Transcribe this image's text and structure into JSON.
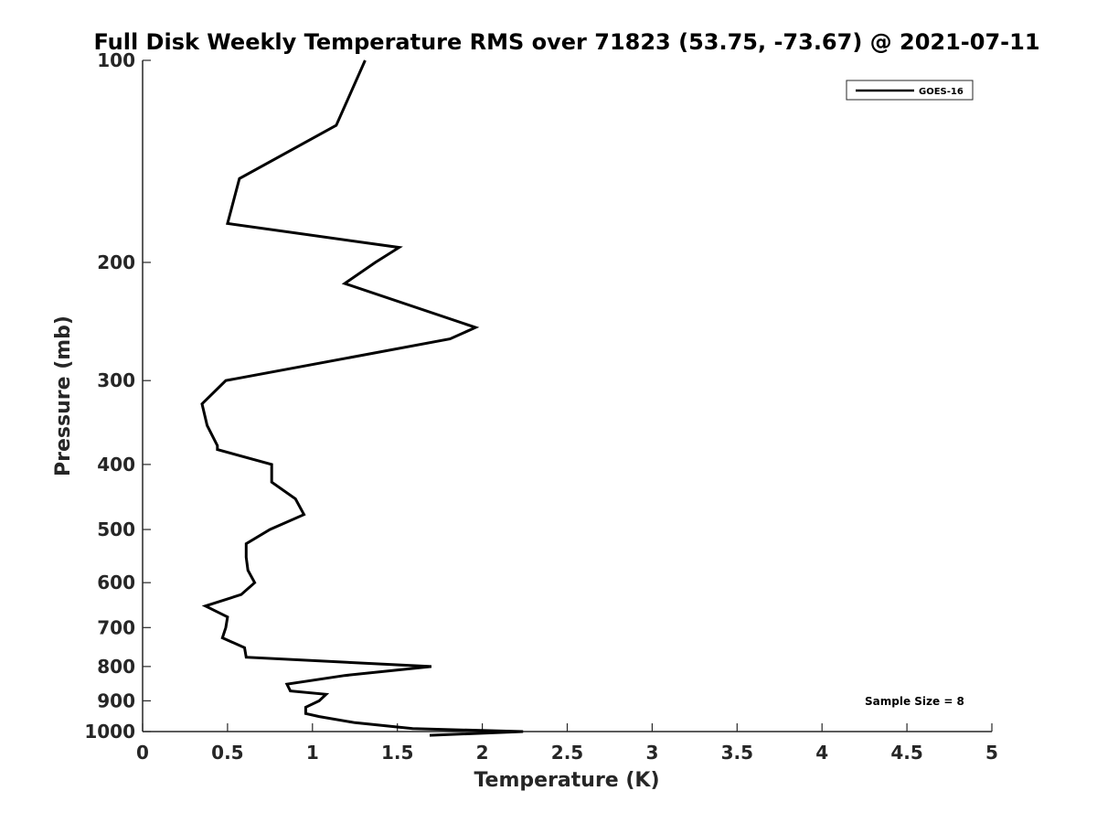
{
  "chart_data": {
    "type": "line",
    "title": "Full Disk Weekly Temperature RMS over 71823 (53.75, -73.67) @ 2021-07-11",
    "xlabel": "Temperature (K)",
    "ylabel": "Pressure (mb)",
    "xlim": [
      0,
      5
    ],
    "ylim": [
      100,
      1000
    ],
    "y_scale": "log",
    "y_reversed": true,
    "x_ticks": [
      "0",
      "0.5",
      "1",
      "1.5",
      "2",
      "2.5",
      "3",
      "3.5",
      "4",
      "4.5",
      "5"
    ],
    "y_ticks": [
      "100",
      "200",
      "300",
      "400",
      "500",
      "600",
      "700",
      "800",
      "900",
      "1000"
    ],
    "grid": false,
    "legend_position": "top-right",
    "series": [
      {
        "name": "GOES-16",
        "color": "#000000",
        "x": [
          1.31,
          1.14,
          0.57,
          0.5,
          1.51,
          1.37,
          1.19,
          1.96,
          1.81,
          0.49,
          0.35,
          0.38,
          0.44,
          0.44,
          0.76,
          0.76,
          0.9,
          0.95,
          0.75,
          0.61,
          0.61,
          0.62,
          0.66,
          0.58,
          0.37,
          0.5,
          0.49,
          0.47,
          0.6,
          0.61,
          1.7,
          1.19,
          0.85,
          0.87,
          1.08,
          1.04,
          0.96,
          0.96,
          1.04,
          1.25,
          1.59,
          2.24,
          1.69
        ],
        "y": [
          100,
          125,
          150,
          175,
          190,
          200,
          215,
          250,
          260,
          300,
          325,
          350,
          375,
          380,
          400,
          425,
          450,
          475,
          500,
          525,
          550,
          575,
          600,
          625,
          650,
          675,
          700,
          725,
          750,
          775,
          800,
          825,
          850,
          870,
          880,
          900,
          920,
          940,
          950,
          970,
          990,
          1000,
          1013
        ]
      }
    ],
    "annotations": [
      "Sample Size = 8"
    ]
  }
}
